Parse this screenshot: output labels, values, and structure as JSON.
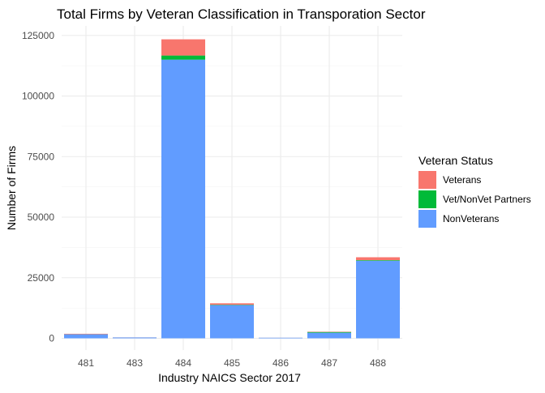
{
  "chart_data": {
    "type": "bar",
    "stacked": true,
    "title": "Total Firms by Veteran Classification in Transporation Sector",
    "xlabel": "Industry NAICS Sector 2017",
    "ylabel": "Number of Firms",
    "categories": [
      "481",
      "483",
      "484",
      "485",
      "486",
      "487",
      "488"
    ],
    "ylim": [
      0,
      128000
    ],
    "yticks": [
      0,
      25000,
      50000,
      75000,
      100000,
      125000
    ],
    "ytick_labels": [
      "0",
      "25000",
      "50000",
      "75000",
      "100000",
      "125000"
    ],
    "grid": true,
    "legend": {
      "title": "Veteran Status",
      "position": "right"
    },
    "series": [
      {
        "name": "NonVeterans",
        "color": "#619CFF",
        "values": [
          1650,
          350,
          115000,
          13700,
          250,
          2300,
          32000
        ]
      },
      {
        "name": "Vet/NonVet Partners",
        "color": "#00BA38",
        "values": [
          20,
          5,
          1700,
          150,
          5,
          300,
          250
        ]
      },
      {
        "name": "Veterans",
        "color": "#F8766D",
        "values": [
          200,
          30,
          6700,
          600,
          20,
          150,
          1200
        ]
      }
    ],
    "legend_order": [
      "Veterans",
      "Vet/NonVet Partners",
      "NonVeterans"
    ]
  }
}
